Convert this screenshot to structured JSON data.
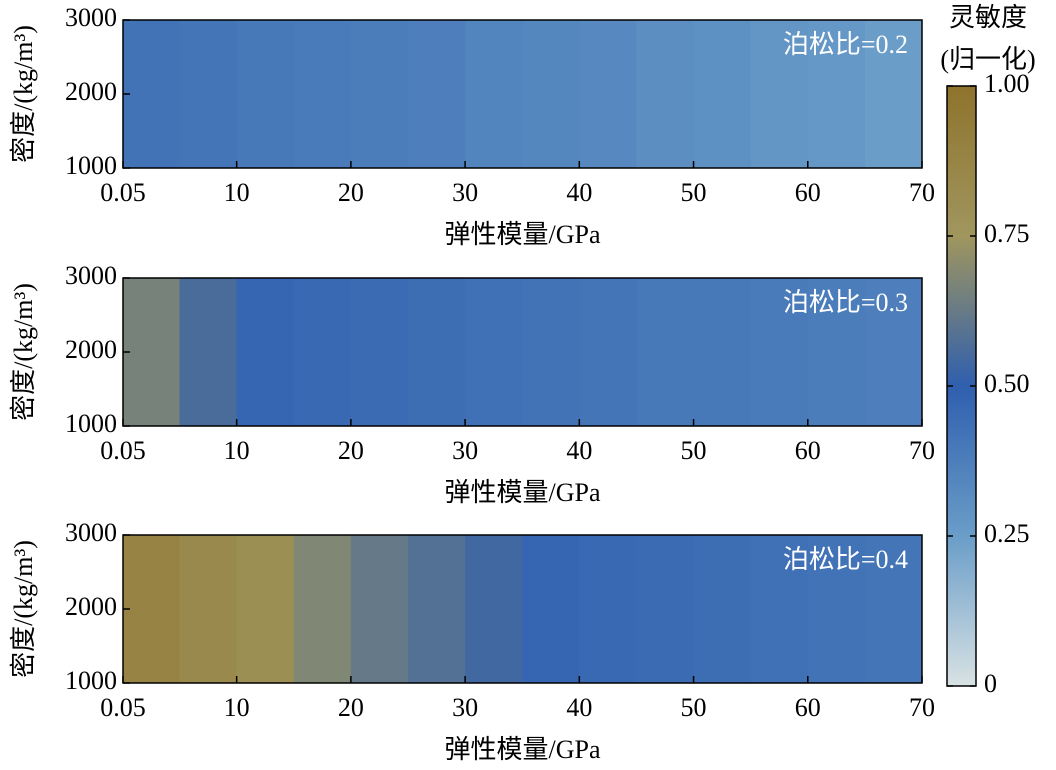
{
  "chart_data": [
    {
      "type": "heatmap",
      "annotation": "泊松比=0.2",
      "xlabel": "弹性模量/GPa",
      "ylabel": "密度/(kg/m³)",
      "x": [
        2.5,
        7.5,
        12.5,
        17.5,
        22.5,
        27.5,
        32.5,
        37.5,
        42.5,
        47.5,
        52.5,
        57.5,
        62.5,
        67.5
      ],
      "values": [
        0.42,
        0.41,
        0.4,
        0.39,
        0.38,
        0.37,
        0.35,
        0.34,
        0.33,
        0.31,
        0.3,
        0.28,
        0.27,
        0.25
      ],
      "xlim": [
        0.05,
        70
      ],
      "ylim": [
        1000,
        3000
      ],
      "xticks": [
        0.05,
        10,
        20,
        30,
        40,
        50,
        60,
        70
      ],
      "yticks": [
        1000,
        2000,
        3000
      ]
    },
    {
      "type": "heatmap",
      "annotation": "泊松比=0.3",
      "xlabel": "弹性模量/GPa",
      "ylabel": "密度/(kg/m³)",
      "x": [
        2.5,
        7.5,
        12.5,
        17.5,
        22.5,
        27.5,
        32.5,
        37.5,
        42.5,
        47.5,
        52.5,
        57.5,
        62.5,
        67.5
      ],
      "values": [
        0.66,
        0.56,
        0.47,
        0.46,
        0.45,
        0.44,
        0.43,
        0.42,
        0.41,
        0.4,
        0.4,
        0.39,
        0.38,
        0.37
      ],
      "xlim": [
        0.05,
        70
      ],
      "ylim": [
        1000,
        3000
      ],
      "xticks": [
        0.05,
        10,
        20,
        30,
        40,
        50,
        60,
        70
      ],
      "yticks": [
        1000,
        2000,
        3000
      ]
    },
    {
      "type": "heatmap",
      "annotation": "泊松比=0.4",
      "xlabel": "弹性模量/GPa",
      "ylabel": "密度/(kg/m³)",
      "x": [
        2.5,
        7.5,
        12.5,
        17.5,
        22.5,
        27.5,
        32.5,
        37.5,
        42.5,
        47.5,
        52.5,
        57.5,
        62.5,
        67.5
      ],
      "values": [
        0.88,
        0.84,
        0.8,
        0.68,
        0.62,
        0.58,
        0.54,
        0.47,
        0.46,
        0.45,
        0.44,
        0.43,
        0.42,
        0.41
      ],
      "xlim": [
        0.05,
        70
      ],
      "ylim": [
        1000,
        3000
      ],
      "xticks": [
        0.05,
        10,
        20,
        30,
        40,
        50,
        60,
        70
      ],
      "yticks": [
        1000,
        2000,
        3000
      ]
    }
  ],
  "colorbar": {
    "title": [
      "灵敏度",
      "(归一化)"
    ],
    "lim": [
      0,
      1
    ],
    "ticks": [
      0,
      0.25,
      {
        "value": 0.5,
        "label": "0.50"
      },
      0.75,
      {
        "value": 1,
        "label": "1.00"
      }
    ],
    "colors": [
      "#d8e2e4",
      "#6a9dc8",
      "#2f5fae",
      "#a0965e",
      "#8e732c"
    ]
  }
}
